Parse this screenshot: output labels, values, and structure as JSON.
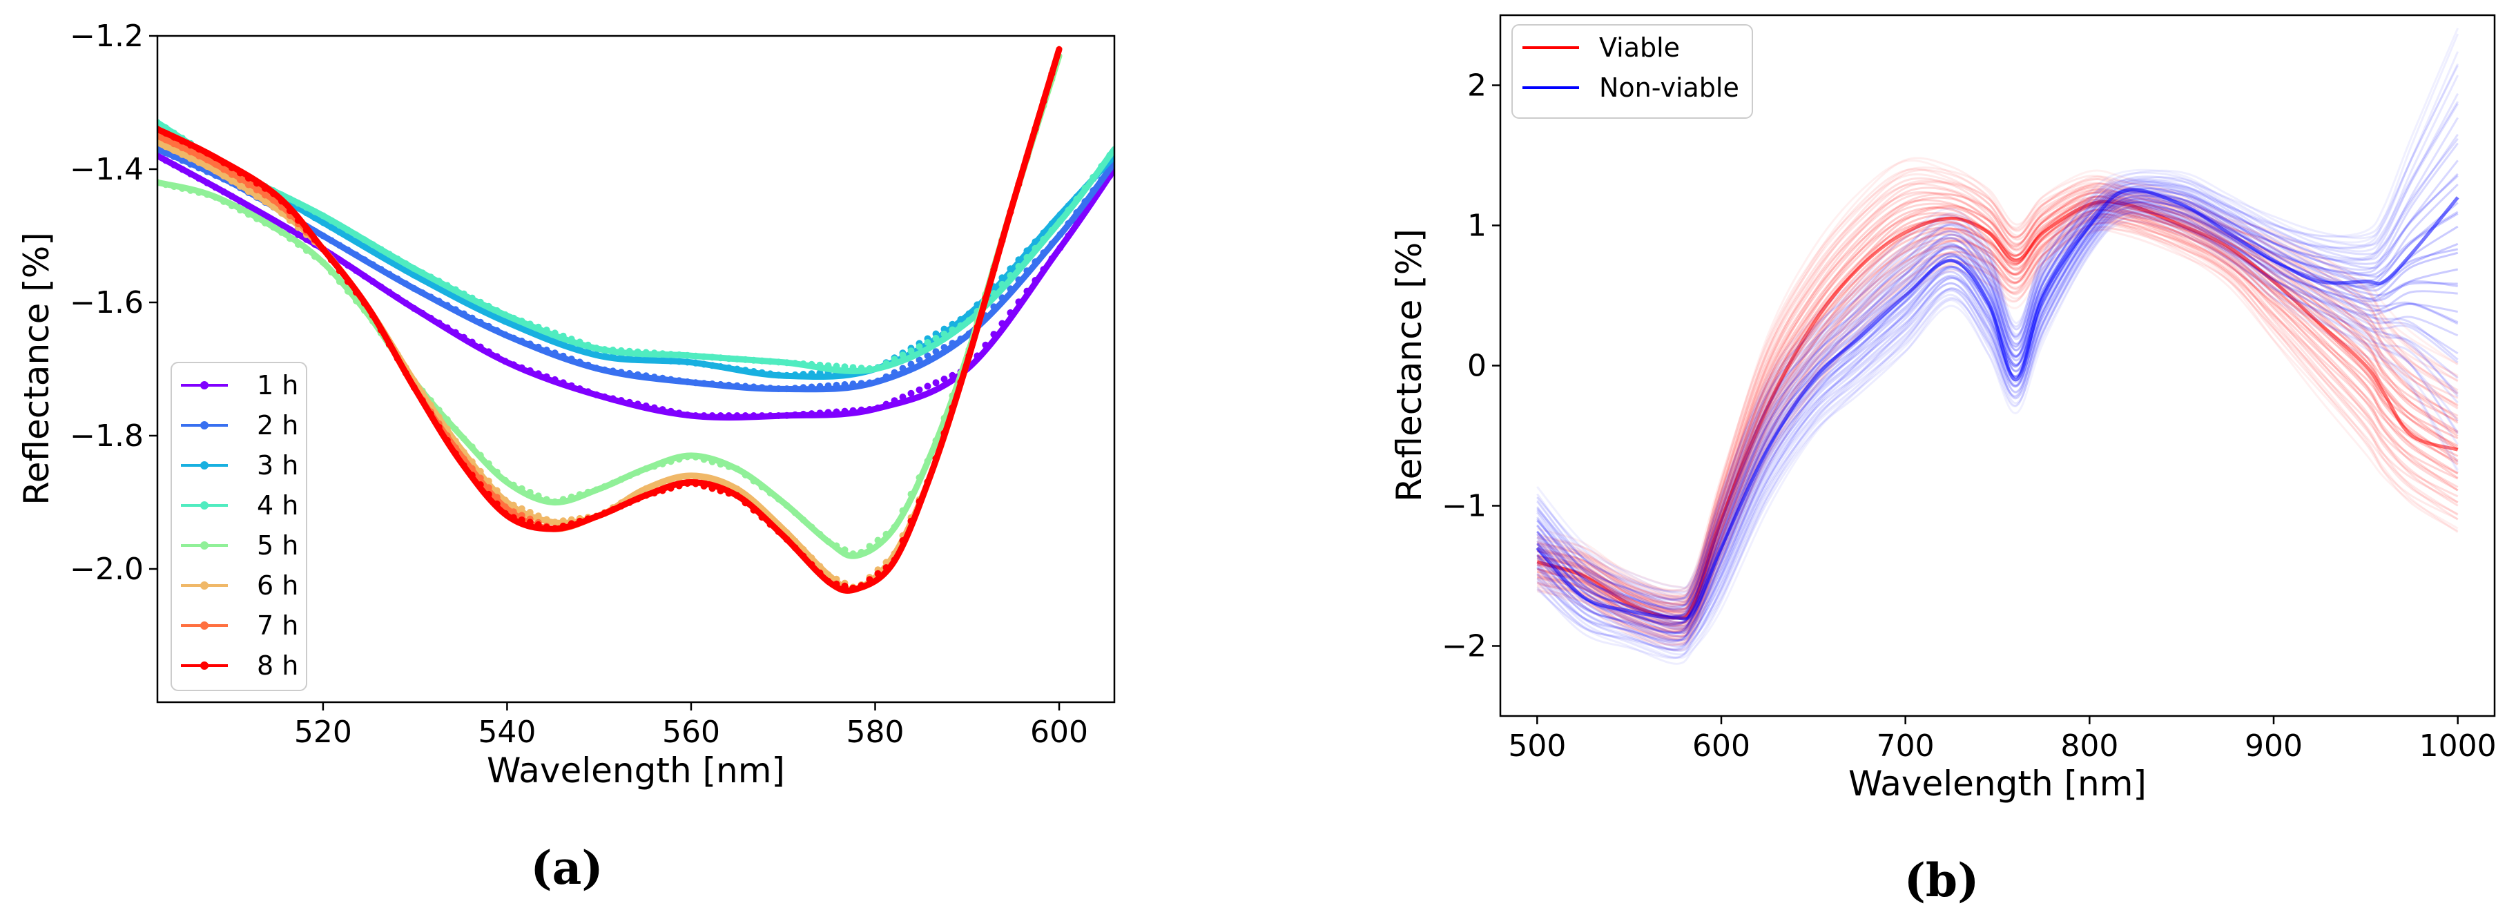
{
  "chart_data": [
    {
      "type": "line",
      "panel_label": "(a)",
      "xlabel": "Wavelength [nm]",
      "ylabel": "Reflectance [%]",
      "xlim": [
        502,
        606
      ],
      "ylim": [
        -2.2,
        -1.2
      ],
      "xticks": [
        520,
        540,
        560,
        580,
        600
      ],
      "yticks": [
        -2.0,
        -1.8,
        -1.6,
        -1.4,
        -1.2
      ],
      "ytick_labels": [
        "−2.0",
        "−1.8",
        "−1.6",
        "−1.4",
        "−1.2"
      ],
      "grid": false,
      "legend_position": "lower-left",
      "series": [
        {
          "name": "1 h",
          "color": "#8000ff",
          "x": [
            502,
            510,
            520,
            530,
            540,
            550,
            560,
            570,
            580,
            590,
            600,
            606
          ],
          "values": [
            -1.38,
            -1.44,
            -1.52,
            -1.61,
            -1.69,
            -1.74,
            -1.77,
            -1.77,
            -1.76,
            -1.7,
            -1.52,
            -1.4
          ]
        },
        {
          "name": "2 h",
          "color": "#3870f0",
          "x": [
            502,
            510,
            520,
            530,
            540,
            550,
            560,
            570,
            580,
            590,
            600,
            606
          ],
          "values": [
            -1.37,
            -1.42,
            -1.5,
            -1.58,
            -1.65,
            -1.7,
            -1.72,
            -1.73,
            -1.72,
            -1.65,
            -1.5,
            -1.39
          ]
        },
        {
          "name": "3 h",
          "color": "#18b0e0",
          "x": [
            502,
            510,
            520,
            530,
            540,
            550,
            560,
            570,
            580,
            590,
            600,
            606
          ],
          "values": [
            -1.34,
            -1.4,
            -1.48,
            -1.56,
            -1.63,
            -1.68,
            -1.69,
            -1.71,
            -1.7,
            -1.62,
            -1.47,
            -1.38
          ]
        },
        {
          "name": "4 h",
          "color": "#50ecc0",
          "x": [
            502,
            510,
            520,
            530,
            540,
            550,
            560,
            570,
            580,
            590,
            600,
            606
          ],
          "values": [
            -1.33,
            -1.4,
            -1.47,
            -1.55,
            -1.62,
            -1.67,
            -1.68,
            -1.69,
            -1.7,
            -1.63,
            -1.48,
            -1.37
          ]
        },
        {
          "name": "5 h",
          "color": "#90f098",
          "x": [
            502,
            508,
            515,
            520,
            525,
            530,
            535,
            540,
            545,
            550,
            555,
            560,
            565,
            570,
            575,
            578,
            582,
            586,
            590,
            595,
            600
          ],
          "values": [
            -1.42,
            -1.44,
            -1.49,
            -1.54,
            -1.62,
            -1.72,
            -1.8,
            -1.87,
            -1.9,
            -1.88,
            -1.85,
            -1.83,
            -1.85,
            -1.9,
            -1.96,
            -1.98,
            -1.94,
            -1.83,
            -1.68,
            -1.45,
            -1.23
          ]
        },
        {
          "name": "6 h",
          "color": "#f0b868",
          "x": [
            502,
            508,
            515,
            520,
            525,
            530,
            535,
            540,
            545,
            550,
            555,
            560,
            565,
            570,
            575,
            578,
            582,
            586,
            590,
            595,
            600
          ],
          "values": [
            -1.36,
            -1.4,
            -1.46,
            -1.52,
            -1.61,
            -1.72,
            -1.82,
            -1.9,
            -1.93,
            -1.92,
            -1.88,
            -1.86,
            -1.88,
            -1.94,
            -2.01,
            -2.03,
            -1.98,
            -1.86,
            -1.69,
            -1.45,
            -1.22
          ]
        },
        {
          "name": "7 h",
          "color": "#ff7040",
          "x": [
            502,
            508,
            515,
            520,
            525,
            530,
            535,
            540,
            545,
            550,
            555,
            560,
            565,
            570,
            575,
            578,
            582,
            586,
            590,
            595,
            600
          ],
          "values": [
            -1.35,
            -1.39,
            -1.45,
            -1.52,
            -1.61,
            -1.73,
            -1.83,
            -1.91,
            -1.94,
            -1.92,
            -1.89,
            -1.87,
            -1.89,
            -1.95,
            -2.02,
            -2.03,
            -1.99,
            -1.86,
            -1.69,
            -1.45,
            -1.22
          ]
        },
        {
          "name": "8 h",
          "color": "#ff0000",
          "x": [
            502,
            508,
            515,
            520,
            525,
            530,
            535,
            540,
            545,
            550,
            555,
            560,
            565,
            570,
            575,
            578,
            582,
            586,
            590,
            595,
            600
          ],
          "values": [
            -1.34,
            -1.38,
            -1.44,
            -1.52,
            -1.61,
            -1.73,
            -1.84,
            -1.92,
            -1.94,
            -1.92,
            -1.89,
            -1.87,
            -1.89,
            -1.95,
            -2.02,
            -2.03,
            -1.99,
            -1.86,
            -1.69,
            -1.45,
            -1.22
          ]
        }
      ]
    },
    {
      "type": "line",
      "panel_label": "(b)",
      "xlabel": "Wavelength [nm]",
      "ylabel": "Reflectance [%]",
      "xlim": [
        480,
        1020
      ],
      "ylim": [
        -2.5,
        2.5
      ],
      "xticks": [
        500,
        600,
        700,
        800,
        900,
        1000
      ],
      "yticks": [
        -2,
        -1,
        0,
        1,
        2
      ],
      "ytick_labels": [
        "−2",
        "−1",
        "0",
        "1",
        "2"
      ],
      "grid": false,
      "legend_position": "top-left",
      "x": [
        500,
        525,
        550,
        575,
        585,
        600,
        625,
        650,
        675,
        700,
        725,
        745,
        760,
        775,
        800,
        820,
        850,
        875,
        900,
        925,
        950,
        960,
        975,
        1000
      ],
      "series": [
        {
          "name": "Viable",
          "color": "#ff0000",
          "values": [
            -1.4,
            -1.5,
            -1.7,
            -1.8,
            -1.7,
            -1.1,
            -0.3,
            0.3,
            0.7,
            0.95,
            1.05,
            0.95,
            0.75,
            0.95,
            1.15,
            1.15,
            1.0,
            0.85,
            0.6,
            0.3,
            0.0,
            -0.2,
            -0.5,
            -0.6
          ],
          "range_low": [
            -1.6,
            -1.7,
            -1.9,
            -2.0,
            -1.9,
            -1.4,
            -0.7,
            -0.2,
            0.2,
            0.5,
            0.7,
            0.6,
            0.45,
            0.7,
            0.95,
            0.95,
            0.8,
            0.6,
            0.2,
            -0.2,
            -0.6,
            -0.8,
            -1.0,
            -1.2
          ],
          "range_high": [
            -1.2,
            -1.3,
            -1.5,
            -1.6,
            -1.5,
            -0.8,
            0.2,
            0.8,
            1.2,
            1.45,
            1.4,
            1.25,
            1.0,
            1.2,
            1.35,
            1.3,
            1.2,
            1.05,
            0.95,
            0.8,
            0.6,
            0.4,
            0.2,
            0.0
          ]
        },
        {
          "name": "Non-viable",
          "color": "#0000ff",
          "values": [
            -1.3,
            -1.65,
            -1.75,
            -1.8,
            -1.75,
            -1.3,
            -0.6,
            -0.1,
            0.2,
            0.5,
            0.75,
            0.45,
            -0.1,
            0.5,
            1.0,
            1.25,
            1.15,
            0.95,
            0.75,
            0.6,
            0.6,
            0.6,
            0.8,
            1.2
          ],
          "range_low": [
            -1.6,
            -1.9,
            -2.0,
            -2.1,
            -2.0,
            -1.7,
            -1.0,
            -0.5,
            -0.2,
            0.1,
            0.45,
            0.1,
            -0.3,
            0.2,
            0.8,
            1.05,
            0.95,
            0.75,
            0.5,
            0.3,
            0.1,
            0.0,
            -0.2,
            -0.8
          ],
          "range_high": [
            -0.9,
            -1.3,
            -1.5,
            -1.6,
            -1.5,
            -0.9,
            -0.1,
            0.3,
            0.6,
            0.9,
            1.1,
            0.85,
            0.3,
            0.8,
            1.2,
            1.35,
            1.35,
            1.2,
            1.05,
            0.95,
            0.95,
            1.1,
            1.6,
            2.4
          ]
        }
      ]
    }
  ]
}
